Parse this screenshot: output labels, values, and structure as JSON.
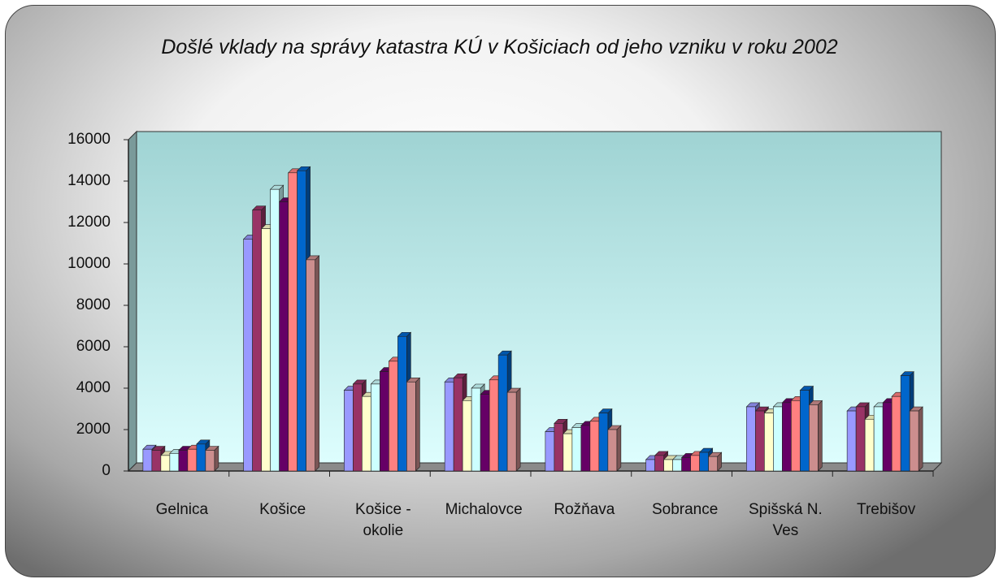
{
  "chart_data": {
    "type": "bar3d",
    "title": "Došlé vklady na správy katastra KÚ v Košiciach od jeho vzniku v roku 2002",
    "categories": [
      "Gelnica",
      "Košice",
      "Košice - okolie",
      "Michalovce",
      "Rožňava",
      "Sobrance",
      "Spišská N. Ves",
      "Trebišov"
    ],
    "series": [
      {
        "color": "#9999ff",
        "values": [
          1050,
          11200,
          3900,
          4300,
          1900,
          550,
          3100,
          2900
        ]
      },
      {
        "color": "#993366",
        "values": [
          1000,
          12600,
          4200,
          4500,
          2300,
          750,
          2900,
          3100
        ]
      },
      {
        "color": "#ffffcc",
        "values": [
          750,
          11700,
          3600,
          3400,
          1800,
          550,
          2800,
          2500
        ]
      },
      {
        "color": "#ccffff",
        "values": [
          850,
          13600,
          4200,
          4000,
          2100,
          550,
          3100,
          3100
        ]
      },
      {
        "color": "#660066",
        "values": [
          1000,
          13000,
          4800,
          3700,
          2200,
          650,
          3300,
          3300
        ]
      },
      {
        "color": "#ff8080",
        "values": [
          1050,
          14400,
          5300,
          4400,
          2400,
          750,
          3400,
          3600
        ]
      },
      {
        "color": "#0066cc",
        "values": [
          1300,
          14500,
          6500,
          5600,
          2800,
          900,
          3900,
          4600
        ]
      },
      {
        "color": "#cc8e8e",
        "values": [
          1000,
          10200,
          4300,
          3800,
          2000,
          700,
          3200,
          2900
        ]
      }
    ],
    "ylim": [
      0,
      16000
    ],
    "yticks": [
      0,
      2000,
      4000,
      6000,
      8000,
      10000,
      12000,
      14000,
      16000
    ],
    "grid": false
  }
}
